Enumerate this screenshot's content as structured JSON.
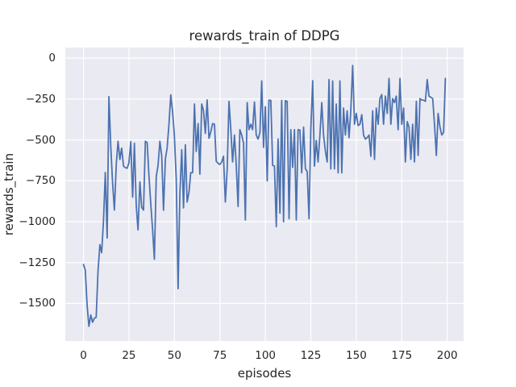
{
  "title": "rewards_train of DDPG",
  "xlabel": "episodes",
  "ylabel": "rewards_train",
  "colors": {
    "figure_bg": "#ffffff",
    "plot_bg": "#eaeaf2",
    "grid": "#ffffff",
    "line": "#4c72b0",
    "text": "#262626"
  },
  "chart_data": {
    "type": "line",
    "title": "rewards_train of DDPG",
    "xlabel": "episodes",
    "ylabel": "rewards_train",
    "xlim": [
      -10,
      209
    ],
    "ylim": [
      -1730,
      65
    ],
    "xticks": [
      0,
      25,
      50,
      75,
      100,
      125,
      150,
      175,
      200
    ],
    "yticks": [
      0,
      -250,
      -500,
      -750,
      -1000,
      -1250,
      -1500
    ],
    "grid": true,
    "legend": false,
    "series_name": "rewards_train",
    "x_start": 0,
    "x_step": 1,
    "values": [
      -1262,
      -1298,
      -1515,
      -1640,
      -1570,
      -1615,
      -1590,
      -1585,
      -1300,
      -1140,
      -1190,
      -990,
      -699,
      -1100,
      -235,
      -540,
      -760,
      -929,
      -650,
      -508,
      -620,
      -550,
      -660,
      -670,
      -673,
      -640,
      -510,
      -850,
      -520,
      -904,
      -1050,
      -756,
      -912,
      -929,
      -508,
      -516,
      -723,
      -890,
      -1052,
      -1230,
      -723,
      -657,
      -508,
      -599,
      -930,
      -616,
      -549,
      -401,
      -224,
      -330,
      -475,
      -740,
      -1410,
      -830,
      -560,
      -916,
      -530,
      -880,
      -820,
      -700,
      -700,
      -280,
      -570,
      -400,
      -709,
      -280,
      -320,
      -460,
      -255,
      -490,
      -450,
      -400,
      -404,
      -630,
      -643,
      -650,
      -635,
      -600,
      -880,
      -676,
      -264,
      -437,
      -635,
      -470,
      -652,
      -907,
      -437,
      -470,
      -520,
      -990,
      -272,
      -437,
      -404,
      -437,
      -268,
      -470,
      -495,
      -454,
      -139,
      -545,
      -297,
      -750,
      -256,
      -258,
      -656,
      -660,
      -1030,
      -494,
      -948,
      -258,
      -1000,
      -260,
      -264,
      -982,
      -437,
      -668,
      -437,
      -990,
      -437,
      -440,
      -701,
      -421,
      -676,
      -693,
      -982,
      -437,
      -137,
      -660,
      -503,
      -635,
      -470,
      -272,
      -470,
      -569,
      -635,
      -131,
      -677,
      -139,
      -677,
      -280,
      -701,
      -139,
      -701,
      -305,
      -470,
      -322,
      -486,
      -322,
      -45,
      -404,
      -338,
      -412,
      -404,
      -346,
      -470,
      -495,
      -486,
      -470,
      -600,
      -322,
      -619,
      -305,
      -404,
      -247,
      -222,
      -404,
      -232,
      -338,
      -124,
      -404,
      -247,
      -272,
      -232,
      -437,
      -124,
      -404,
      -305,
      -635,
      -388,
      -421,
      -619,
      -404,
      -635,
      -264,
      -595,
      -247,
      -256,
      -256,
      -264,
      -131,
      -232,
      -239,
      -247,
      -404,
      -595,
      -338,
      -421,
      -470,
      -454,
      -124
    ]
  }
}
